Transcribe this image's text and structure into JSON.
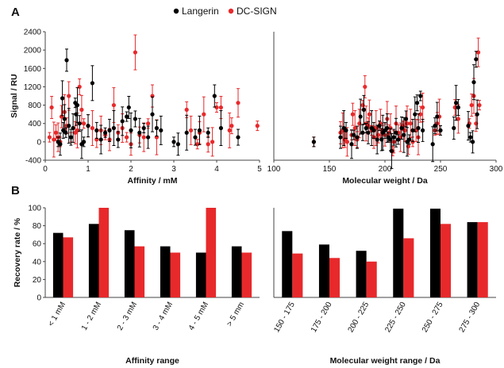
{
  "panels": {
    "a": "A",
    "b": "B"
  },
  "colors": {
    "langerin": "#000000",
    "dcsign": "#e8292b",
    "axis": "#444444"
  },
  "chart_data": [
    {
      "id": "a-affinity",
      "type": "scatter",
      "xlabel": "Affinity  / mM",
      "ylabel": "Signal / RU",
      "xlim": [
        0,
        5
      ],
      "ylim": [
        -400,
        2400
      ],
      "xticks": [
        0,
        1,
        2,
        3,
        4,
        5
      ],
      "yticks": [
        -400,
        0,
        400,
        800,
        1200,
        1600,
        2000,
        2400
      ],
      "legend": "top-right",
      "series": [
        {
          "name": "Langerin",
          "points": [
            [
              0.3,
              0
            ],
            [
              0.35,
              -50
            ],
            [
              0.4,
              950
            ],
            [
              0.42,
              250
            ],
            [
              0.45,
              500
            ],
            [
              0.48,
              200
            ],
            [
              0.5,
              1780
            ],
            [
              0.55,
              350
            ],
            [
              0.6,
              100
            ],
            [
              0.65,
              300
            ],
            [
              0.7,
              850
            ],
            [
              0.72,
              600
            ],
            [
              0.75,
              800
            ],
            [
              0.8,
              400
            ],
            [
              0.85,
              -50
            ],
            [
              0.9,
              0
            ],
            [
              1.0,
              350
            ],
            [
              1.1,
              1280
            ],
            [
              1.2,
              250
            ],
            [
              1.3,
              50
            ],
            [
              1.4,
              200
            ],
            [
              1.5,
              250
            ],
            [
              1.6,
              300
            ],
            [
              1.7,
              50
            ],
            [
              1.8,
              450
            ],
            [
              1.9,
              550
            ],
            [
              1.95,
              750
            ],
            [
              2.0,
              250
            ],
            [
              2.1,
              500
            ],
            [
              2.2,
              200
            ],
            [
              2.3,
              300
            ],
            [
              2.4,
              100
            ],
            [
              2.5,
              600
            ],
            [
              2.6,
              300
            ],
            [
              2.7,
              250
            ],
            [
              3.0,
              0
            ],
            [
              3.1,
              -50
            ],
            [
              3.3,
              200
            ],
            [
              3.5,
              100
            ],
            [
              3.6,
              250
            ],
            [
              3.8,
              200
            ],
            [
              3.95,
              1000
            ],
            [
              4.1,
              300
            ],
            [
              4.5,
              100
            ]
          ]
        },
        {
          "name": "DC-SIGN",
          "points": [
            [
              0.1,
              100
            ],
            [
              0.15,
              750
            ],
            [
              0.2,
              50
            ],
            [
              0.25,
              200
            ],
            [
              0.3,
              100
            ],
            [
              0.35,
              0
            ],
            [
              0.38,
              550
            ],
            [
              0.45,
              650
            ],
            [
              0.5,
              350
            ],
            [
              0.55,
              1000
            ],
            [
              0.6,
              100
            ],
            [
              0.7,
              200
            ],
            [
              0.75,
              250
            ],
            [
              0.8,
              1200
            ],
            [
              0.85,
              700
            ],
            [
              0.9,
              400
            ],
            [
              1.0,
              350
            ],
            [
              1.1,
              300
            ],
            [
              1.2,
              50
            ],
            [
              1.3,
              250
            ],
            [
              1.4,
              150
            ],
            [
              1.5,
              50
            ],
            [
              1.6,
              800
            ],
            [
              1.7,
              200
            ],
            [
              1.8,
              300
            ],
            [
              1.9,
              100
            ],
            [
              2.0,
              -50
            ],
            [
              2.1,
              1950
            ],
            [
              2.2,
              150
            ],
            [
              2.3,
              100
            ],
            [
              2.4,
              400
            ],
            [
              2.5,
              1000
            ],
            [
              2.6,
              100
            ],
            [
              3.3,
              700
            ],
            [
              3.4,
              250
            ],
            [
              3.55,
              -50
            ],
            [
              3.6,
              200
            ],
            [
              3.7,
              600
            ],
            [
              3.8,
              -50
            ],
            [
              3.9,
              0
            ],
            [
              4.0,
              750
            ],
            [
              4.1,
              750
            ],
            [
              4.3,
              250
            ],
            [
              4.35,
              350
            ],
            [
              4.5,
              850
            ],
            [
              4.95,
              350
            ]
          ]
        }
      ]
    },
    {
      "id": "a-mw",
      "type": "scatter",
      "xlabel": "Molecular weight / Da",
      "ylabel": "",
      "xlim": [
        100,
        300
      ],
      "ylim": [
        -400,
        2400
      ],
      "xticks": [
        100,
        150,
        200,
        250,
        300
      ],
      "series": [
        {
          "name": "Langerin",
          "points": [
            [
              136,
              0
            ],
            [
              160,
              100
            ],
            [
              163,
              300
            ],
            [
              165,
              250
            ],
            [
              170,
              -50
            ],
            [
              172,
              150
            ],
            [
              175,
              100
            ],
            [
              178,
              550
            ],
            [
              180,
              200
            ],
            [
              181,
              700
            ],
            [
              183,
              300
            ],
            [
              185,
              200
            ],
            [
              188,
              300
            ],
            [
              190,
              250
            ],
            [
              193,
              50
            ],
            [
              195,
              350
            ],
            [
              197,
              50
            ],
            [
              198,
              200
            ],
            [
              200,
              250
            ],
            [
              202,
              300
            ],
            [
              203,
              100
            ],
            [
              205,
              50
            ],
            [
              206,
              -200
            ],
            [
              208,
              100
            ],
            [
              210,
              200
            ],
            [
              212,
              50
            ],
            [
              215,
              300
            ],
            [
              217,
              150
            ],
            [
              219,
              500
            ],
            [
              220,
              0
            ],
            [
              222,
              50
            ],
            [
              225,
              250
            ],
            [
              227,
              600
            ],
            [
              229,
              850
            ],
            [
              230,
              300
            ],
            [
              232,
              1000
            ],
            [
              234,
              250
            ],
            [
              243,
              -50
            ],
            [
              245,
              350
            ],
            [
              247,
              550
            ],
            [
              250,
              250
            ],
            [
              262,
              300
            ],
            [
              264,
              850
            ],
            [
              266,
              750
            ],
            [
              275,
              350
            ],
            [
              277,
              100
            ],
            [
              279,
              0
            ],
            [
              280,
              1300
            ],
            [
              282,
              1800
            ],
            [
              283,
              600
            ]
          ]
        },
        {
          "name": "DC-SIGN",
          "points": [
            [
              136,
              0
            ],
            [
              160,
              200
            ],
            [
              162,
              250
            ],
            [
              164,
              50
            ],
            [
              166,
              0
            ],
            [
              170,
              150
            ],
            [
              171,
              600
            ],
            [
              173,
              300
            ],
            [
              175,
              50
            ],
            [
              177,
              400
            ],
            [
              180,
              800
            ],
            [
              182,
              1200
            ],
            [
              183,
              400
            ],
            [
              185,
              350
            ],
            [
              186,
              600
            ],
            [
              188,
              250
            ],
            [
              190,
              100
            ],
            [
              192,
              300
            ],
            [
              194,
              150
            ],
            [
              196,
              400
            ],
            [
              198,
              250
            ],
            [
              200,
              150
            ],
            [
              202,
              500
            ],
            [
              204,
              200
            ],
            [
              205,
              300
            ],
            [
              207,
              -200
            ],
            [
              208,
              0
            ],
            [
              210,
              400
            ],
            [
              212,
              200
            ],
            [
              214,
              100
            ],
            [
              216,
              350
            ],
            [
              218,
              250
            ],
            [
              220,
              400
            ],
            [
              221,
              -100
            ],
            [
              223,
              400
            ],
            [
              225,
              0
            ],
            [
              228,
              250
            ],
            [
              230,
              100
            ],
            [
              232,
              600
            ],
            [
              234,
              750
            ],
            [
              245,
              250
            ],
            [
              247,
              400
            ],
            [
              249,
              550
            ],
            [
              263,
              750
            ],
            [
              266,
              500
            ],
            [
              276,
              400
            ],
            [
              278,
              800
            ],
            [
              280,
              1000
            ],
            [
              282,
              400
            ],
            [
              284,
              1950
            ],
            [
              285,
              800
            ]
          ]
        }
      ]
    },
    {
      "id": "b-affinity",
      "type": "bar",
      "xlabel": "Affinity  range",
      "ylabel": "Recovery rate / %",
      "ylim": [
        0,
        100
      ],
      "yticks": [
        0,
        20,
        40,
        60,
        80,
        100
      ],
      "categories": [
        "< 1 mM",
        "1 - 2 mM",
        "2 - 3 mM",
        "3 - 4 mM",
        "4 - 5 mM",
        "> 5 mm"
      ],
      "series": [
        {
          "name": "Langerin",
          "values": [
            72,
            82,
            75,
            57,
            50,
            57
          ]
        },
        {
          "name": "DC-SIGN",
          "values": [
            67,
            100,
            57,
            50,
            100,
            50
          ]
        }
      ]
    },
    {
      "id": "b-mw",
      "type": "bar",
      "xlabel": "Molecular weight range / Da",
      "ylabel": "",
      "ylim": [
        0,
        100
      ],
      "categories": [
        "150 - 175",
        "175 - 200",
        "200 - 225",
        "225 - 250",
        "250 - 275",
        "275 - 300"
      ],
      "series": [
        {
          "name": "Langerin",
          "values": [
            74,
            59,
            52,
            99,
            99,
            84
          ]
        },
        {
          "name": "DC-SIGN",
          "values": [
            49,
            44,
            40,
            66,
            82,
            84
          ]
        }
      ]
    }
  ]
}
